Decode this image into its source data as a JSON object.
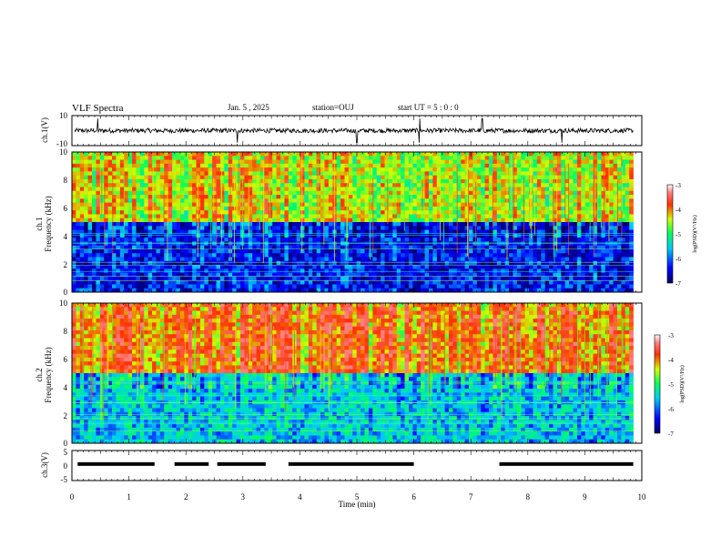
{
  "header": {
    "title": "VLF Spectra",
    "date": "Jan. 5 , 2025",
    "station": "station=OUJ",
    "start": "start UT =  5 : 0 : 0"
  },
  "chart_data": [
    {
      "type": "line",
      "ylabel": "ch.1(V)",
      "ylim": [
        -10,
        10
      ],
      "yticks": [
        "10",
        "-10"
      ],
      "xlim": [
        0,
        10
      ],
      "description_values": {
        "baseline": 0,
        "noise_amplitude": 1.5,
        "spike_times_min": [
          0.45,
          2.9,
          5.0,
          6.1,
          7.2,
          8.6
        ]
      }
    },
    {
      "type": "heatmap",
      "ylabel": "ch.1\nFrequency (kHz)",
      "ylim": [
        0,
        10
      ],
      "yticks": [
        "0",
        "2",
        "4",
        "6",
        "8",
        "10"
      ],
      "xlim": [
        0,
        10
      ],
      "data_end_min": 9.85,
      "colorbar": {
        "label": "log(PSD)(V²/Hz)",
        "range": [
          -7,
          -3
        ],
        "ticks": [
          "-3",
          "-4",
          "-5",
          "-6",
          "-7"
        ]
      },
      "level_profile": {
        "high_band_kHz": [
          5,
          10
        ],
        "high_level": -4.3,
        "low_band_kHz": [
          0,
          5
        ],
        "low_level": -6.3
      }
    },
    {
      "type": "heatmap",
      "ylabel": "ch.2\nFrequency (kHz)",
      "ylim": [
        0,
        10
      ],
      "yticks": [
        "0",
        "2",
        "4",
        "6",
        "8",
        "10"
      ],
      "xlim": [
        0,
        10
      ],
      "data_end_min": 9.85,
      "colorbar": {
        "label": "log(PSD)(V²/Hz)",
        "range": [
          -7,
          -3
        ],
        "ticks": [
          "-3",
          "-4",
          "-5",
          "-6",
          "-7"
        ]
      },
      "level_profile": {
        "high_band_kHz": [
          5,
          10
        ],
        "high_level": -3.8,
        "low_band_kHz": [
          0,
          5
        ],
        "low_level": -5.6
      }
    },
    {
      "type": "line",
      "ylabel": "ch.3(V)",
      "ylim": [
        -5,
        5
      ],
      "yticks": [
        "5",
        "0",
        "-5"
      ],
      "xlim": [
        0,
        10
      ],
      "xlabel": "Time (min)",
      "xticks": [
        "0",
        "1",
        "2",
        "3",
        "4",
        "5",
        "6",
        "7",
        "8",
        "9",
        "10"
      ],
      "segments": [
        {
          "start": 0.1,
          "end": 1.45,
          "value": 0.5
        },
        {
          "start": 1.8,
          "end": 2.4,
          "value": 0.5
        },
        {
          "start": 2.55,
          "end": 3.4,
          "value": 0.5
        },
        {
          "start": 3.8,
          "end": 6.0,
          "value": 0.5
        },
        {
          "start": 7.5,
          "end": 9.85,
          "value": 0.5
        }
      ]
    }
  ],
  "colors": {
    "colormap": [
      "#000080",
      "#0000ff",
      "#00ffff",
      "#00ff00",
      "#ffff00",
      "#ff0000",
      "#ffb0b0"
    ],
    "axis": "#000000",
    "trace": "#000000"
  }
}
